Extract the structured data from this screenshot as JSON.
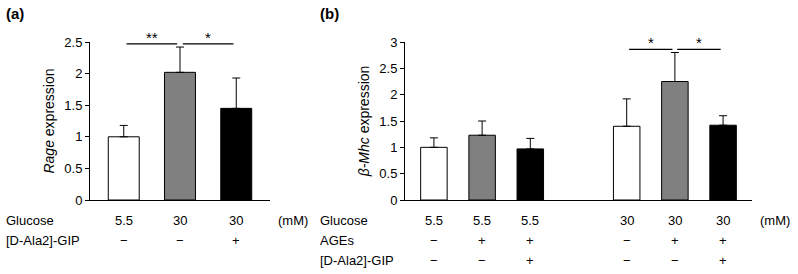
{
  "chart_data": [
    {
      "type": "bar",
      "panel": "(a)",
      "y_label": "Rage expression",
      "values": [
        1.0,
        2.02,
        1.45
      ],
      "errors": [
        0.18,
        0.4,
        0.48
      ],
      "colors": [
        "#ffffff",
        "#808080",
        "#000000"
      ],
      "ylim": [
        0,
        2.5
      ],
      "yticks": [
        0,
        0.5,
        1,
        1.5,
        2,
        2.5
      ],
      "grid": false,
      "group_sizes": [
        3
      ],
      "conditions": [
        {
          "name": "Glucose",
          "values": [
            5.5,
            30,
            30
          ],
          "unit": "(mM)"
        },
        {
          "name": "[D-Ala2]-GIP",
          "values": [
            "−",
            "−",
            "+"
          ]
        }
      ],
      "comparisons": [
        {
          "from": 0,
          "to": 1,
          "label": "**"
        },
        {
          "from": 1,
          "to": 2,
          "label": "*"
        }
      ]
    },
    {
      "type": "bar",
      "panel": "(b)",
      "y_label": "β-Mhc expression",
      "values": [
        1.0,
        1.23,
        0.97,
        1.4,
        2.25,
        1.42
      ],
      "errors": [
        0.18,
        0.27,
        0.2,
        0.52,
        0.55,
        0.18
      ],
      "colors": [
        "#ffffff",
        "#808080",
        "#000000",
        "#ffffff",
        "#808080",
        "#000000"
      ],
      "ylim": [
        0,
        3
      ],
      "yticks": [
        0,
        0.5,
        1,
        1.5,
        2,
        2.5,
        3
      ],
      "grid": false,
      "group_sizes": [
        3,
        3
      ],
      "conditions": [
        {
          "name": "Glucose",
          "values": [
            5.5,
            5.5,
            5.5,
            30,
            30,
            30
          ],
          "unit": "(mM)"
        },
        {
          "name": "AGEs",
          "values": [
            "−",
            "+",
            "+",
            "−",
            "+",
            "+"
          ]
        },
        {
          "name": "[D-Ala2]-GIP",
          "values": [
            "−",
            "−",
            "+",
            "−",
            "−",
            "+"
          ]
        }
      ],
      "comparisons": [
        {
          "from": 3,
          "to": 4,
          "label": "*"
        },
        {
          "from": 4,
          "to": 5,
          "label": "*"
        }
      ]
    }
  ]
}
